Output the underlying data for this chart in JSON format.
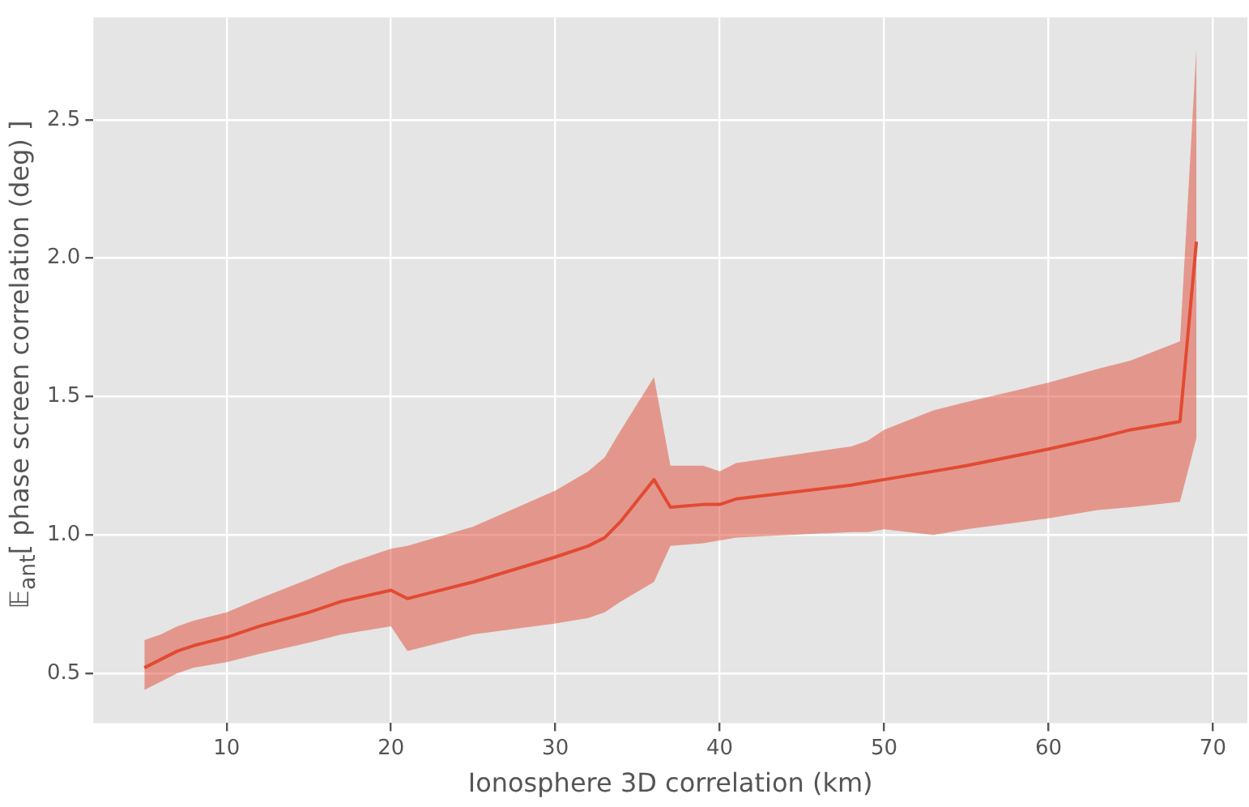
{
  "chart_data": {
    "type": "line",
    "xlabel": "Ionosphere 3D correlation (km)",
    "ylabel": "𝔼$_{ant}$[ phase screen correlation (deg) ]",
    "xlim": [
      1.9,
      72.1
    ],
    "ylim": [
      0.32,
      2.87
    ],
    "xticks": [
      10,
      20,
      30,
      40,
      50,
      60,
      70
    ],
    "yticks": [
      0.5,
      {
        "value": 1,
        "label": "1.0"
      },
      1.5,
      {
        "value": 2,
        "label": "2.0"
      },
      2.5
    ],
    "grid": true,
    "marker": "none",
    "line_style": "solid",
    "x": [
      5,
      6,
      7,
      8,
      10,
      12,
      15,
      17,
      20,
      21,
      25,
      30,
      32,
      33,
      34,
      36,
      37,
      39,
      40,
      41,
      48,
      49,
      50,
      53,
      55,
      60,
      63,
      65,
      68,
      69
    ],
    "series": [
      {
        "color": "#e24a33",
        "values": [
          0.52,
          0.55,
          0.58,
          0.6,
          0.63,
          0.67,
          0.72,
          0.76,
          0.8,
          0.77,
          0.83,
          0.92,
          0.96,
          0.99,
          1.05,
          1.2,
          1.1,
          1.11,
          1.11,
          1.13,
          1.18,
          1.19,
          1.2,
          1.23,
          1.25,
          1.31,
          1.35,
          1.38,
          1.41,
          2.06
        ],
        "lower": [
          0.44,
          0.47,
          0.5,
          0.52,
          0.54,
          0.57,
          0.61,
          0.64,
          0.67,
          0.58,
          0.64,
          0.68,
          0.7,
          0.72,
          0.76,
          0.83,
          0.96,
          0.97,
          0.98,
          0.99,
          1.01,
          1.01,
          1.02,
          1.0,
          1.02,
          1.06,
          1.09,
          1.1,
          1.12,
          1.35
        ],
        "upper": [
          0.62,
          0.64,
          0.67,
          0.69,
          0.72,
          0.77,
          0.84,
          0.89,
          0.95,
          0.96,
          1.03,
          1.16,
          1.23,
          1.28,
          1.38,
          1.57,
          1.25,
          1.25,
          1.23,
          1.26,
          1.32,
          1.34,
          1.38,
          1.45,
          1.48,
          1.55,
          1.6,
          1.63,
          1.7,
          2.76
        ]
      }
    ]
  }
}
